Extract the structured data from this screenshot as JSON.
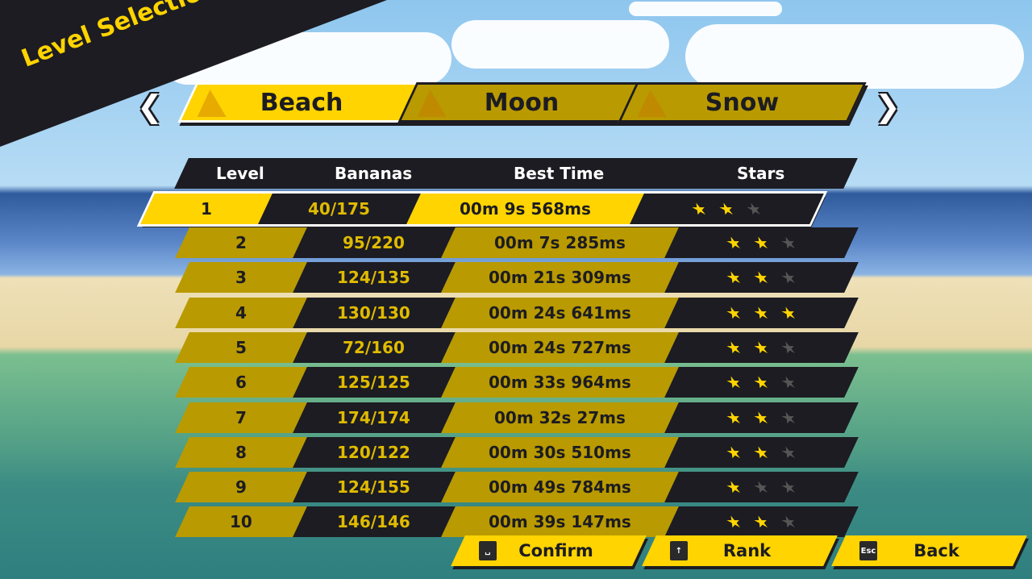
{
  "title": "Level Selection",
  "tabs": [
    {
      "label": "Beach",
      "active": true
    },
    {
      "label": "Moon",
      "active": false
    },
    {
      "label": "Snow",
      "active": false
    }
  ],
  "nav": {
    "prev_icon": "chevron-left-icon",
    "next_icon": "chevron-right-icon"
  },
  "table": {
    "headers": [
      "Level",
      "Bananas",
      "Best Time",
      "Stars"
    ],
    "rows": [
      {
        "level": "1",
        "bananas": "40/175",
        "time": "00m 9s 568ms",
        "stars": 2,
        "selected": true
      },
      {
        "level": "2",
        "bananas": "95/220",
        "time": "00m 7s 285ms",
        "stars": 2
      },
      {
        "level": "3",
        "bananas": "124/135",
        "time": "00m 21s 309ms",
        "stars": 2
      },
      {
        "level": "4",
        "bananas": "130/130",
        "time": "00m 24s 641ms",
        "stars": 3
      },
      {
        "level": "5",
        "bananas": "72/160",
        "time": "00m 24s 727ms",
        "stars": 2
      },
      {
        "level": "6",
        "bananas": "125/125",
        "time": "00m 33s 964ms",
        "stars": 2
      },
      {
        "level": "7",
        "bananas": "174/174",
        "time": "00m 32s 27ms",
        "stars": 2
      },
      {
        "level": "8",
        "bananas": "120/122",
        "time": "00m 30s 510ms",
        "stars": 2
      },
      {
        "level": "9",
        "bananas": "124/155",
        "time": "00m 49s 784ms",
        "stars": 1
      },
      {
        "level": "10",
        "bananas": "146/146",
        "time": "00m 39s 147ms",
        "stars": 2
      }
    ]
  },
  "max_stars": 3,
  "buttons": [
    {
      "label": "Confirm",
      "key": "␣"
    },
    {
      "label": "Rank",
      "key": "↑"
    },
    {
      "label": "Back",
      "key": "Esc"
    }
  ],
  "colors": {
    "accent": "#ffd400",
    "dark": "#1c1c22",
    "gold": "#b99a00"
  }
}
